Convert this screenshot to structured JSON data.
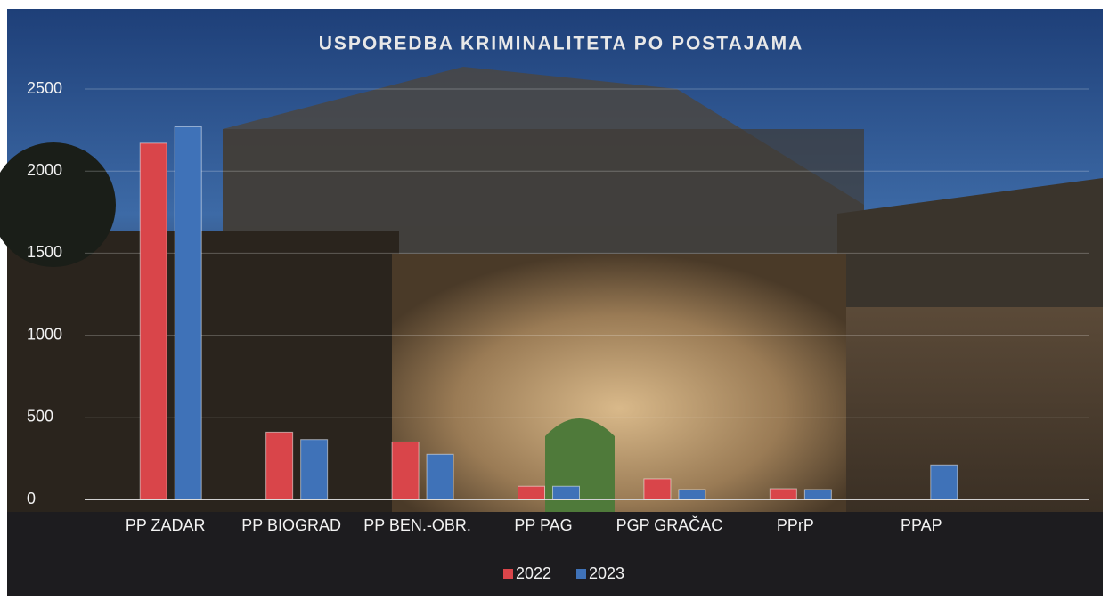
{
  "chart_data": {
    "type": "bar",
    "title": "USPOREDBA KRIMINALITETA PO POSTAJAMA",
    "categories": [
      "PP ZADAR",
      "PP BIOGRAD",
      "PP BEN.-OBR.",
      "PP PAG",
      "PGP GRAČAC",
      "PPrP",
      "PPAP"
    ],
    "series": [
      {
        "name": "2022",
        "color": "#d9454a",
        "values": [
          2170,
          410,
          350,
          80,
          125,
          65,
          0
        ]
      },
      {
        "name": "2023",
        "color": "#3f72b8",
        "values": [
          2270,
          365,
          275,
          80,
          60,
          60,
          210
        ]
      }
    ],
    "ylim": [
      0,
      2500
    ],
    "yticks": [
      0,
      500,
      1000,
      1500,
      2000,
      2500
    ],
    "grid": true,
    "legend": "bottom"
  }
}
